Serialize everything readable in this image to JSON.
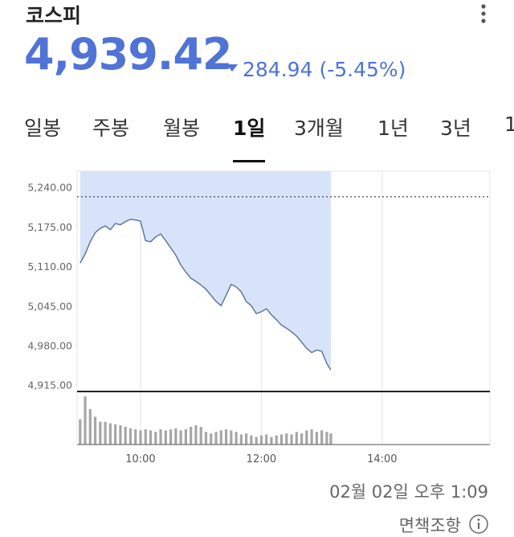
{
  "header": {
    "title": "코스피",
    "price": "4,939.42",
    "change": "284.94",
    "change_pct": "(-5.45%)"
  },
  "tabs": {
    "items": [
      "일봉",
      "주봉",
      "월봉",
      "1일",
      "3개월",
      "1년",
      "3년",
      "1"
    ],
    "active": 3
  },
  "chart_data": {
    "type": "line",
    "x": [
      540,
      545,
      550,
      555,
      560,
      565,
      570,
      575,
      580,
      585,
      590,
      595,
      600,
      605,
      610,
      615,
      620,
      625,
      630,
      635,
      640,
      645,
      650,
      655,
      660,
      665,
      670,
      675,
      680,
      685,
      690,
      695,
      700,
      705,
      710,
      715,
      720,
      725,
      730,
      735,
      740,
      745,
      750,
      755,
      760,
      765,
      770,
      775,
      780,
      785,
      789
    ],
    "values": [
      5115,
      5130,
      5150,
      5165,
      5172,
      5176,
      5170,
      5180,
      5178,
      5183,
      5187,
      5186,
      5184,
      5152,
      5150,
      5158,
      5163,
      5152,
      5140,
      5128,
      5112,
      5100,
      5090,
      5085,
      5079,
      5072,
      5062,
      5052,
      5045,
      5062,
      5080,
      5076,
      5068,
      5052,
      5045,
      5032,
      5035,
      5040,
      5030,
      5022,
      5013,
      5008,
      5002,
      4995,
      4985,
      4975,
      4968,
      4972,
      4970,
      4950,
      4939.42
    ],
    "color": "#5a6f95",
    "fill_color": "#d7e3f8",
    "reference_line": 5224,
    "xlim": [
      537,
      947
    ],
    "xticks": [
      {
        "value": 600,
        "label": "10:00"
      },
      {
        "value": 720,
        "label": "12:00"
      },
      {
        "value": 840,
        "label": "14:00"
      }
    ],
    "ylim": [
      4904,
      5266
    ],
    "yticks": [
      {
        "value": 5240,
        "label": "5,240.00"
      },
      {
        "value": 5175,
        "label": "5,175.00"
      },
      {
        "value": 5110,
        "label": "5,110.00"
      },
      {
        "value": 5045,
        "label": "5,045.00"
      },
      {
        "value": 4980,
        "label": "4,980.00"
      },
      {
        "value": 4915,
        "label": "4,915.00"
      }
    ],
    "volume": [
      50,
      95,
      70,
      55,
      45,
      45,
      42,
      40,
      38,
      35,
      32,
      30,
      28,
      30,
      28,
      25,
      30,
      28,
      30,
      32,
      28,
      30,
      35,
      38,
      35,
      25,
      22,
      25,
      28,
      30,
      28,
      25,
      20,
      22,
      18,
      15,
      18,
      20,
      15,
      18,
      20,
      22,
      20,
      25,
      22,
      28,
      30,
      25,
      28,
      25,
      22
    ],
    "volume_color": "#a6a6a6",
    "volume_ylim": [
      0,
      100
    ]
  },
  "footer": {
    "timestamp": "02월 02일 오후 1:09",
    "disclaimer": "면책조항"
  }
}
